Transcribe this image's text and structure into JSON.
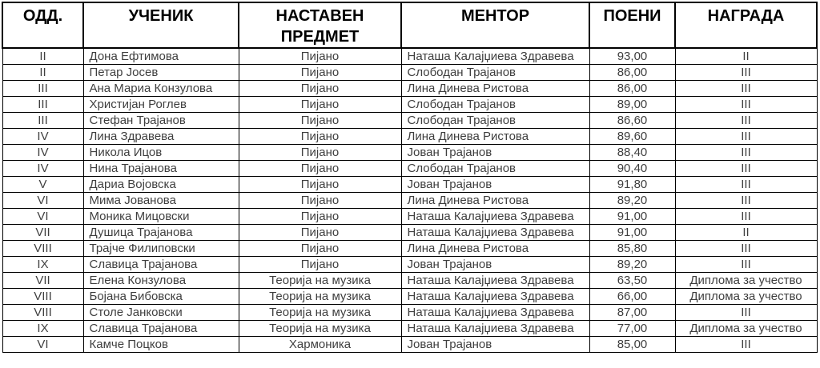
{
  "table": {
    "columns": [
      {
        "label": "ОДД."
      },
      {
        "label": "УЧЕНИК"
      },
      {
        "label": "НАСТАВЕН ПРЕДМЕТ"
      },
      {
        "label": "МЕНТОР"
      },
      {
        "label": "ПОЕНИ"
      },
      {
        "label": "НАГРАДА"
      }
    ],
    "rows": [
      {
        "grade": "II",
        "student": "Дона Ефтимова",
        "subject": "Пијано",
        "mentor": "Наташа Калајџиева Здравева",
        "points": "93,00",
        "award": "II"
      },
      {
        "grade": "II",
        "student": "Петар Јосев",
        "subject": "Пијано",
        "mentor": "Слободан Трајанов",
        "points": "86,00",
        "award": "III"
      },
      {
        "grade": "III",
        "student": "Ана Мариа Конзулова",
        "subject": "Пијано",
        "mentor": "Лина Динева Ристова",
        "points": "86,00",
        "award": "III"
      },
      {
        "grade": "III",
        "student": "Христијан Роглев",
        "subject": "Пијано",
        "mentor": "Слободан Трајанов",
        "points": "89,00",
        "award": "III"
      },
      {
        "grade": "III",
        "student": "Стефан Трајанов",
        "subject": "Пијано",
        "mentor": "Слободан Трајанов",
        "points": "86,60",
        "award": "III"
      },
      {
        "grade": "IV",
        "student": "Лина Здравева",
        "subject": "Пијано",
        "mentor": "Лина Динева Ристова",
        "points": "89,60",
        "award": "III"
      },
      {
        "grade": "IV",
        "student": "Никола Ицов",
        "subject": "Пијано",
        "mentor": "Јован Трајанов",
        "points": "88,40",
        "award": "III"
      },
      {
        "grade": "IV",
        "student": "Нина Трајанова",
        "subject": "Пијано",
        "mentor": "Слободан Трајанов",
        "points": "90,40",
        "award": "III"
      },
      {
        "grade": "V",
        "student": "Дариа Војовска",
        "subject": "Пијано",
        "mentor": "Јован Трајанов",
        "points": "91,80",
        "award": "III"
      },
      {
        "grade": "VI",
        "student": "Мима Јованова",
        "subject": "Пијано",
        "mentor": "Лина Динева Ристова",
        "points": "89,20",
        "award": "III"
      },
      {
        "grade": "VI",
        "student": "Моника Мицовски",
        "subject": "Пијано",
        "mentor": "Наташа Калајџиева Здравева",
        "points": "91,00",
        "award": "III"
      },
      {
        "grade": "VII",
        "student": "Душица Трајанова",
        "subject": "Пијано",
        "mentor": "Наташа Калајџиева Здравева",
        "points": "91,00",
        "award": "II"
      },
      {
        "grade": "VIII",
        "student": "Трајче Филиповски",
        "subject": "Пијано",
        "mentor": "Лина Динева Ристова",
        "points": "85,80",
        "award": "III"
      },
      {
        "grade": "IX",
        "student": "Славица Трајанова",
        "subject": "Пијано",
        "mentor": "Јован Трајанов",
        "points": "89,20",
        "award": "III"
      },
      {
        "grade": "VII",
        "student": "Елена Конзулова",
        "subject": "Теорија на музика",
        "mentor": "Наташа Калајџиева Здравева",
        "points": "63,50",
        "award": "Диплома за учество"
      },
      {
        "grade": "VIII",
        "student": "Бојана Бибовска",
        "subject": "Теорија на музика",
        "mentor": "Наташа Калајџиева Здравева",
        "points": "66,00",
        "award": "Диплома за учество"
      },
      {
        "grade": "VIII",
        "student": "Столе Јанковски",
        "subject": "Теорија на музика",
        "mentor": "Наташа Калајџиева Здравева",
        "points": "87,00",
        "award": "III"
      },
      {
        "grade": "IX",
        "student": "Славица Трајанова",
        "subject": "Теорија на музика",
        "mentor": "Наташа Калајџиева Здравева",
        "points": "77,00",
        "award": "Диплома за учество"
      },
      {
        "grade": "VI",
        "student": "Камче Поцков",
        "subject": "Хармоника",
        "mentor": "Јован Трајанов",
        "points": "85,00",
        "award": "III"
      }
    ]
  }
}
